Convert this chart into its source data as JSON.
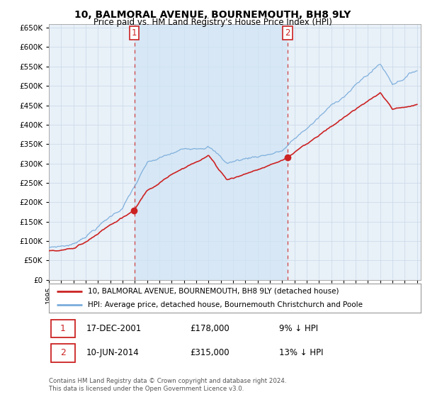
{
  "title": "10, BALMORAL AVENUE, BOURNEMOUTH, BH8 9LY",
  "subtitle": "Price paid vs. HM Land Registry's House Price Index (HPI)",
  "ylabel_values": [
    0,
    50000,
    100000,
    150000,
    200000,
    250000,
    300000,
    350000,
    400000,
    450000,
    500000,
    550000,
    600000,
    650000
  ],
  "legend_line1": "10, BALMORAL AVENUE, BOURNEMOUTH, BH8 9LY (detached house)",
  "legend_line2": "HPI: Average price, detached house, Bournemouth Christchurch and Poole",
  "sale1_date": "17-DEC-2001",
  "sale1_price": "£178,000",
  "sale1_note": "9% ↓ HPI",
  "sale2_date": "10-JUN-2014",
  "sale2_price": "£315,000",
  "sale2_note": "13% ↓ HPI",
  "footer_line1": "Contains HM Land Registry data © Crown copyright and database right 2024.",
  "footer_line2": "This data is licensed under the Open Government Licence v3.0.",
  "sale1_year": 2001.96,
  "sale1_price_val": 178000,
  "sale2_year": 2014.44,
  "sale2_price_val": 315000,
  "hpi_color": "#7aaddc",
  "property_color": "#cc2222",
  "grid_color": "#cccccc",
  "background_color": "#ffffff",
  "plot_bg_color": "#dce8f5",
  "shade_color": "#dce8f5"
}
